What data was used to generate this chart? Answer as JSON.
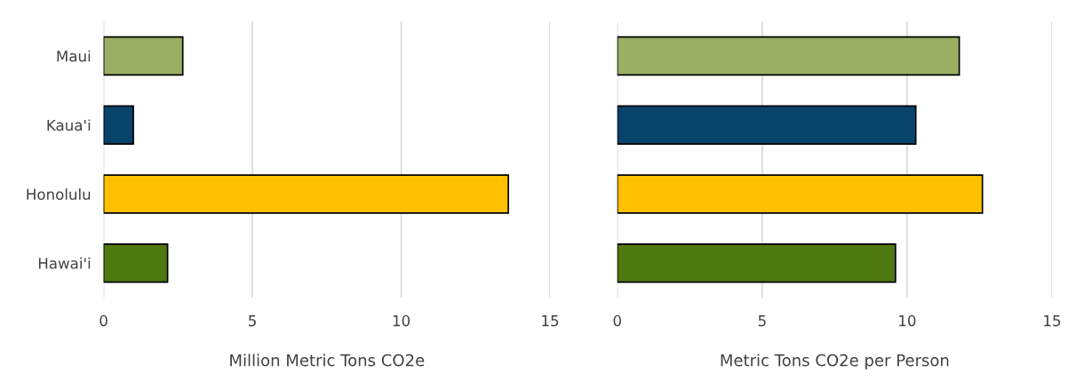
{
  "chart_data": [
    {
      "type": "bar",
      "orientation": "horizontal",
      "categories": [
        "Maui",
        "Kaua'i",
        "Honolulu",
        "Hawai'i"
      ],
      "values": [
        2.66,
        1.0,
        13.6,
        2.15
      ],
      "colors": [
        "#9bae63",
        "#08436b",
        "#ffc000",
        "#4e7a0f"
      ],
      "xlabel": "Million Metric Tons CO2e",
      "xlim": [
        0,
        15
      ],
      "xticks": [
        0,
        5,
        10,
        15
      ],
      "grid": "x",
      "legend": false
    },
    {
      "type": "bar",
      "orientation": "horizontal",
      "categories": [
        null,
        null,
        null,
        null
      ],
      "values": [
        11.8,
        10.3,
        12.6,
        9.6
      ],
      "colors": [
        "#9bae63",
        "#08436b",
        "#ffc000",
        "#4e7a0f"
      ],
      "xlabel": "Metric Tons CO2e per Person",
      "xlim": [
        0,
        15
      ],
      "xticks": [
        0,
        5,
        10,
        15
      ],
      "grid": "x",
      "legend": false,
      "tick_labels": "x"
    }
  ]
}
